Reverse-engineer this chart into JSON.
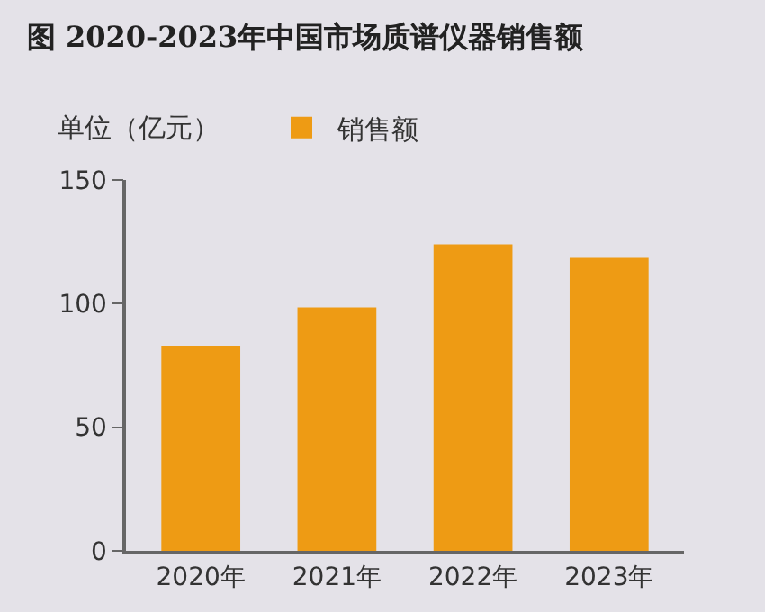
{
  "chart_data": {
    "type": "bar",
    "title": "图 2020-2023年中国市场质谱仪器销售额",
    "ylabel": "单位（亿元）",
    "categories": [
      "2020年",
      "2021年",
      "2022年",
      "2023年"
    ],
    "series": [
      {
        "name": "销售额",
        "color": "#ee9b14",
        "values": [
          83,
          98.5,
          124,
          118.5
        ]
      }
    ],
    "ylim": [
      0,
      150
    ],
    "yticks": [
      0,
      50,
      100,
      150
    ],
    "grid": false,
    "legend": "top left"
  }
}
